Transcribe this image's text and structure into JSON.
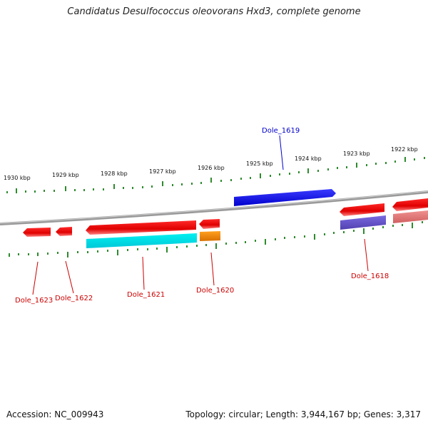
{
  "title": "Candidatus Desulfococcus oleovorans Hxd3, complete genome",
  "accession": "Accession: NC_009943",
  "summary": "Topology: circular; Length: 3,944,167 bp; Genes: 3,317",
  "scale_labels": [
    "1930 kbp",
    "1929 kbp",
    "1928 kbp",
    "1927 kbp",
    "1926 kbp",
    "1925 kbp",
    "1924 kbp",
    "1923 kbp",
    "1922 kbp"
  ],
  "gene_labels": {
    "dole_1619": "Dole_1619",
    "dole_1618": "Dole_1618",
    "dole_1620": "Dole_1620",
    "dole_1621": "Dole_1621",
    "dole_1622": "Dole_1622",
    "dole_1623": "Dole_1623"
  },
  "colors": {
    "backbone": "#808080",
    "scale": "#2e8b2e",
    "forward_gene": "#0000ee",
    "reverse_gene": "#ee0000",
    "cds_cyan": "#00e5ee",
    "cds_orange": "#ee8800",
    "cds_purple": "#6a5acd",
    "cds_pink": "#e88080"
  }
}
